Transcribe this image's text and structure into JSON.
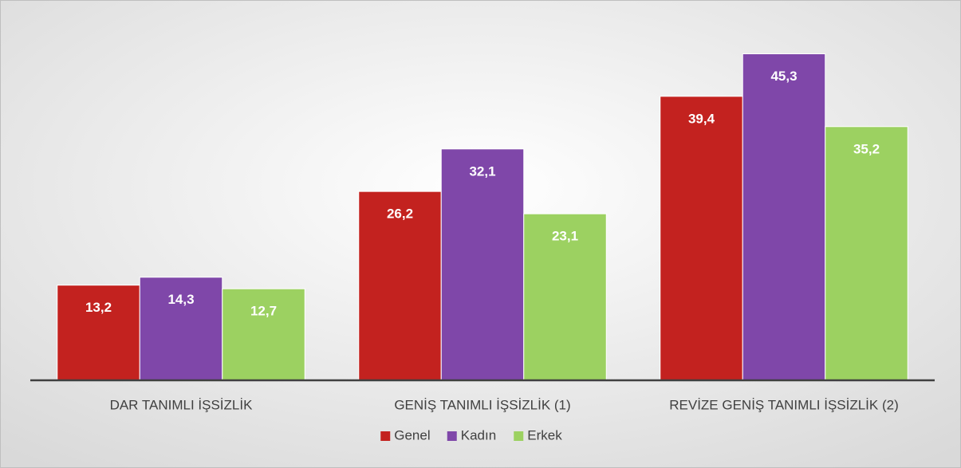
{
  "chart_data": {
    "type": "bar",
    "categories": [
      "DAR TANIMLI İŞSİZLİK",
      "GENİŞ TANIMLI İŞSİZLİK (1)",
      "REVİZE GENİŞ TANIMLI İŞSİZLİK (2)"
    ],
    "series": [
      {
        "name": "Genel",
        "color": "#c3221f",
        "values": [
          13.2,
          26.2,
          39.4
        ],
        "value_labels": [
          "13,2",
          "26,2",
          "39,4"
        ]
      },
      {
        "name": "Kadın",
        "color": "#7f47a9",
        "values": [
          14.3,
          32.1,
          45.3
        ],
        "value_labels": [
          "14,3",
          "32,1",
          "45,3"
        ]
      },
      {
        "name": "Erkek",
        "color": "#9cd161",
        "values": [
          12.7,
          23.1,
          35.2
        ],
        "value_labels": [
          "12,7",
          "23,1",
          "35,2"
        ]
      }
    ],
    "ylim": [
      0,
      50
    ],
    "legend": "bottom"
  }
}
